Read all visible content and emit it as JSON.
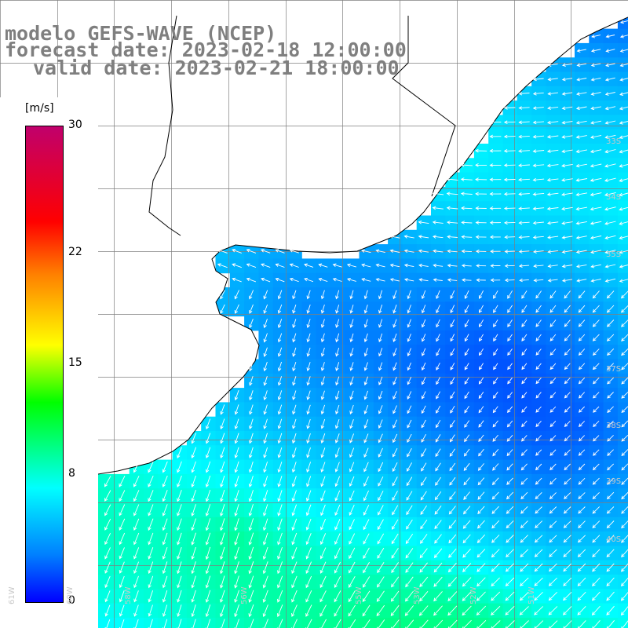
{
  "title": {
    "model": "modelo GEFS-WAVE (NCEP)",
    "forecast": "forecast date: 2023-02-18 12:00:00",
    "valid": "valid date: 2023-02-21 18:00:00"
  },
  "colorbar": {
    "unit": "[m/s]",
    "ticks": [
      {
        "label": "30",
        "value": 30
      },
      {
        "label": "22",
        "value": 22
      },
      {
        "label": "15",
        "value": 15
      },
      {
        "label": "8",
        "value": 8
      },
      {
        "label": "0",
        "value": 0
      }
    ],
    "range": [
      0,
      30
    ],
    "colors": [
      "#0000ff",
      "#0080ff",
      "#00ffff",
      "#00ff00",
      "#ffff00",
      "#ff7f00",
      "#ff0000",
      "#c0006c"
    ]
  },
  "map": {
    "lon_range": [
      -62,
      -51
    ],
    "lat_range": [
      -41,
      -31
    ],
    "grid_step_deg": 1,
    "lat_labels": [
      "33S",
      "34S",
      "35S",
      "37S",
      "38S",
      "39S",
      "40S"
    ],
    "lon_labels": [
      "61W",
      "60W",
      "58W",
      "56W",
      "55W",
      "53W",
      "52W",
      "51W"
    ],
    "land_color": "#ffffff",
    "coast_color": "#000000",
    "grid_color": "#7f7f7f",
    "arrow_color": "#ffffff"
  }
}
